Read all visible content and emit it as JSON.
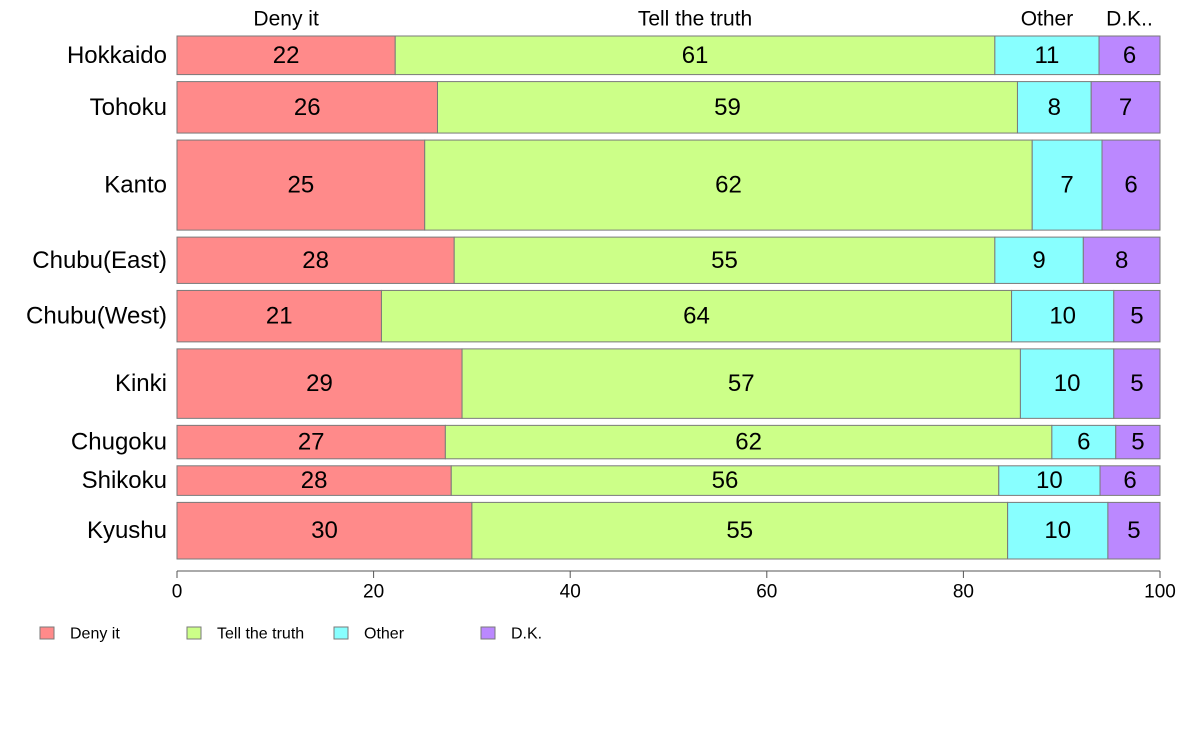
{
  "chart_data": {
    "type": "bar",
    "orientation": "horizontal",
    "stacked": true,
    "variable_width": true,
    "categories": [
      "Hokkaido",
      "Tohoku",
      "Kanto",
      "Chubu(East)",
      "Chubu(West)",
      "Kinki",
      "Chugoku",
      "Shikoku",
      "Kyushu"
    ],
    "series": [
      {
        "name": "Deny it",
        "color": "#ff8a8a",
        "values": [
          22.2,
          26.5,
          25.2,
          28.2,
          20.8,
          29.0,
          27.3,
          27.9,
          30.0
        ]
      },
      {
        "name": "Tell the truth",
        "color": "#ccff88",
        "values": [
          61.0,
          59.0,
          61.8,
          55.0,
          64.1,
          56.8,
          61.7,
          55.7,
          54.5
        ]
      },
      {
        "name": "Other",
        "color": "#88ffff",
        "values": [
          10.6,
          7.5,
          7.1,
          9.0,
          10.4,
          9.5,
          6.5,
          10.3,
          10.2
        ]
      },
      {
        "name": "D.K.",
        "color": "#bb88ff",
        "values": [
          6.2,
          7.0,
          5.9,
          7.8,
          4.7,
          4.7,
          4.5,
          6.1,
          5.3
        ]
      }
    ],
    "data_labels": [
      [
        "22",
        "61",
        "11",
        "6"
      ],
      [
        "26",
        "59",
        "8",
        "7"
      ],
      [
        "25",
        "62",
        "7",
        "6"
      ],
      [
        "28",
        "55",
        "9",
        "8"
      ],
      [
        "21",
        "64",
        "10",
        "5"
      ],
      [
        "29",
        "57",
        "10",
        "5"
      ],
      [
        "27",
        "62",
        "6",
        "5"
      ],
      [
        "28",
        "56",
        "10",
        "6"
      ],
      [
        "30",
        "55",
        "10",
        "5"
      ]
    ],
    "bar_weights": [
      3,
      4,
      7,
      3.6,
      4,
      5.4,
      2.6,
      2.3,
      4.4
    ],
    "top_labels": [
      "Deny it",
      "Tell the truth",
      "Other",
      "D.K.."
    ],
    "xlim": [
      0,
      100
    ],
    "xticks": [
      0,
      20,
      40,
      60,
      80,
      100
    ],
    "legend": {
      "position": "bottom-left",
      "entries": [
        "Deny it",
        "Tell the truth",
        "Other",
        "D.K."
      ]
    },
    "grid": false
  }
}
